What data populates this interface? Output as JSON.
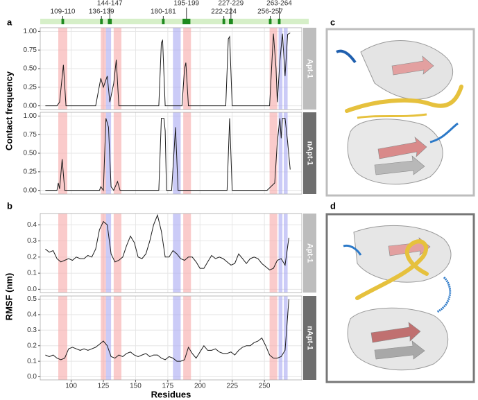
{
  "panel_labels": [
    "a",
    "b",
    "c",
    "d"
  ],
  "shared_x": {
    "label": "Residues",
    "xlim": [
      76,
      279
    ],
    "xticks": [
      100,
      125,
      150,
      175,
      200,
      225,
      250
    ]
  },
  "binding_bar_color": "#d6efc8",
  "binding_tick_color": "#1e8a1e",
  "binding_sites": [
    {
      "label": "109-110",
      "start": 93,
      "end": 94
    },
    {
      "label": "136-139",
      "start": 123,
      "end": 124
    },
    {
      "label": "144-147",
      "start": 129,
      "end": 131
    },
    {
      "label": "180-181",
      "start": 171,
      "end": 172
    },
    {
      "label": "195-199",
      "start": 187,
      "end": 192
    },
    {
      "label": "222-224",
      "start": 218,
      "end": 219
    },
    {
      "label": "227-229",
      "start": 223,
      "end": 225
    },
    {
      "label": "256-257",
      "start": 254,
      "end": 255
    },
    {
      "label": "263-264",
      "start": 261,
      "end": 262
    }
  ],
  "highlight_regions": [
    {
      "start": 90,
      "end": 97,
      "color": "#f7a8a8"
    },
    {
      "start": 123,
      "end": 127,
      "color": "#f7a8a8"
    },
    {
      "start": 127,
      "end": 131,
      "color": "#a9a9f2"
    },
    {
      "start": 133,
      "end": 139,
      "color": "#f7a8a8"
    },
    {
      "start": 179,
      "end": 185,
      "color": "#a9a9f2"
    },
    {
      "start": 187,
      "end": 193,
      "color": "#f7a8a8"
    },
    {
      "start": 254,
      "end": 260,
      "color": "#f7a8a8"
    },
    {
      "start": 261,
      "end": 264,
      "color": "#a9a9f2"
    },
    {
      "start": 265,
      "end": 268,
      "color": "#a9a9f2"
    }
  ],
  "chart_data": [
    {
      "type": "line",
      "ylabel": "Contact frequency",
      "strip": "Apt-1",
      "strip_color": "#bdbdbd",
      "grid": true,
      "ylim": [
        -0.05,
        1.05
      ],
      "yticks": [
        {
          "value": 0,
          "label": "0.00"
        },
        {
          "value": 0.25,
          "label": "0.25"
        },
        {
          "value": 0.5,
          "label": "0.50"
        },
        {
          "value": 0.75,
          "label": "0.75"
        },
        {
          "value": 1,
          "label": "1.00"
        }
      ],
      "x": [
        80,
        89,
        91,
        94,
        96,
        119,
        123,
        125,
        128,
        130,
        133,
        135,
        137,
        168,
        170,
        171,
        173,
        186,
        188,
        189,
        191,
        220,
        222,
        223,
        225,
        254,
        257,
        259,
        260,
        262,
        264,
        266,
        268,
        270
      ],
      "series": [
        {
          "color": "#1a1a1a",
          "values": [
            0,
            0,
            0.05,
            0.55,
            0,
            0,
            0.37,
            0.25,
            0.4,
            0.05,
            0.3,
            0.62,
            0,
            0,
            0.85,
            0.88,
            0,
            0,
            0.5,
            0.58,
            0,
            0,
            0.9,
            0.93,
            0,
            0,
            0.97,
            0.5,
            0.05,
            0.6,
            0.97,
            0.4,
            0.96,
            0.98
          ]
        }
      ]
    },
    {
      "type": "line",
      "strip": "nApt-1",
      "strip_color": "#6e6e6e",
      "grid": true,
      "ylim": [
        -0.05,
        1.05
      ],
      "yticks": [
        {
          "value": 0,
          "label": "0.00"
        },
        {
          "value": 0.25,
          "label": "0.25"
        },
        {
          "value": 0.5,
          "label": "0.50"
        },
        {
          "value": 0.75,
          "label": "0.75"
        },
        {
          "value": 1,
          "label": "1.00"
        }
      ],
      "x": [
        80,
        89,
        90,
        91,
        93,
        95,
        122,
        123,
        125,
        127,
        129,
        131,
        133,
        136,
        138,
        168,
        170,
        172,
        173,
        174,
        178,
        181,
        183,
        221,
        223,
        225,
        252,
        258,
        260,
        262,
        263,
        264,
        266,
        268,
        270
      ],
      "series": [
        {
          "color": "#1a1a1a",
          "values": [
            0,
            0,
            0.1,
            0.02,
            0.42,
            0,
            0,
            0.05,
            0,
            0.97,
            0.85,
            0.05,
            0,
            0.12,
            0,
            0,
            0.97,
            0.97,
            0.8,
            0,
            0,
            0.85,
            0,
            0,
            0.97,
            0,
            0,
            0.1,
            0.65,
            0.97,
            0.7,
            0.97,
            0.97,
            0.65,
            0.28
          ]
        }
      ]
    },
    {
      "type": "line",
      "ylabel": "RMSF (nm)",
      "strip": "Apt-1",
      "strip_color": "#bdbdbd",
      "grid": true,
      "ylim": [
        -0.02,
        0.47
      ],
      "yticks": [
        {
          "value": 0,
          "label": "0.0"
        },
        {
          "value": 0.1,
          "label": "0.1"
        },
        {
          "value": 0.2,
          "label": "0.2"
        },
        {
          "value": 0.3,
          "label": "0.3"
        },
        {
          "value": 0.4,
          "label": "0.4"
        }
      ],
      "x": [
        80,
        83,
        86,
        89,
        92,
        95,
        98,
        101,
        104,
        107,
        110,
        113,
        116,
        119,
        122,
        125,
        128,
        131,
        134,
        137,
        140,
        143,
        146,
        149,
        152,
        155,
        158,
        161,
        164,
        167,
        170,
        173,
        176,
        179,
        182,
        185,
        188,
        191,
        194,
        197,
        200,
        203,
        206,
        209,
        212,
        215,
        218,
        221,
        224,
        227,
        230,
        233,
        236,
        239,
        242,
        245,
        248,
        251,
        254,
        257,
        260,
        263,
        266,
        269
      ],
      "series": [
        {
          "color": "#1a1a1a",
          "values": [
            0.25,
            0.23,
            0.24,
            0.19,
            0.17,
            0.18,
            0.19,
            0.18,
            0.2,
            0.19,
            0.19,
            0.21,
            0.2,
            0.25,
            0.37,
            0.42,
            0.4,
            0.22,
            0.17,
            0.18,
            0.2,
            0.27,
            0.33,
            0.29,
            0.2,
            0.19,
            0.22,
            0.3,
            0.4,
            0.46,
            0.36,
            0.2,
            0.2,
            0.24,
            0.22,
            0.19,
            0.18,
            0.2,
            0.2,
            0.17,
            0.13,
            0.13,
            0.17,
            0.21,
            0.19,
            0.2,
            0.19,
            0.17,
            0.15,
            0.16,
            0.22,
            0.19,
            0.16,
            0.19,
            0.2,
            0.19,
            0.16,
            0.14,
            0.12,
            0.13,
            0.18,
            0.19,
            0.15,
            0.32
          ]
        }
      ]
    },
    {
      "type": "line",
      "strip": "nApt-1",
      "strip_color": "#6e6e6e",
      "grid": true,
      "ylim": [
        -0.02,
        0.52
      ],
      "yticks": [
        {
          "value": 0,
          "label": "0.0"
        },
        {
          "value": 0.1,
          "label": "0.1"
        },
        {
          "value": 0.2,
          "label": "0.2"
        },
        {
          "value": 0.3,
          "label": "0.3"
        },
        {
          "value": 0.4,
          "label": "0.4"
        },
        {
          "value": 0.5,
          "label": "0.5"
        }
      ],
      "x": [
        80,
        83,
        86,
        89,
        92,
        95,
        98,
        101,
        104,
        107,
        110,
        113,
        116,
        119,
        122,
        125,
        128,
        131,
        134,
        137,
        140,
        143,
        146,
        149,
        152,
        155,
        158,
        161,
        164,
        167,
        170,
        173,
        176,
        179,
        182,
        185,
        188,
        191,
        194,
        197,
        200,
        203,
        206,
        209,
        212,
        215,
        218,
        221,
        224,
        227,
        230,
        233,
        236,
        239,
        242,
        245,
        248,
        251,
        254,
        257,
        260,
        263,
        266,
        269
      ],
      "series": [
        {
          "color": "#1a1a1a",
          "values": [
            0.14,
            0.13,
            0.14,
            0.12,
            0.11,
            0.12,
            0.18,
            0.19,
            0.18,
            0.17,
            0.18,
            0.17,
            0.18,
            0.19,
            0.21,
            0.23,
            0.2,
            0.13,
            0.12,
            0.14,
            0.13,
            0.15,
            0.16,
            0.14,
            0.13,
            0.14,
            0.15,
            0.13,
            0.14,
            0.14,
            0.12,
            0.11,
            0.13,
            0.12,
            0.1,
            0.1,
            0.11,
            0.19,
            0.15,
            0.12,
            0.16,
            0.2,
            0.17,
            0.17,
            0.18,
            0.16,
            0.15,
            0.15,
            0.16,
            0.14,
            0.17,
            0.19,
            0.2,
            0.2,
            0.22,
            0.23,
            0.25,
            0.2,
            0.14,
            0.12,
            0.12,
            0.13,
            0.17,
            0.5
          ]
        }
      ]
    }
  ]
}
